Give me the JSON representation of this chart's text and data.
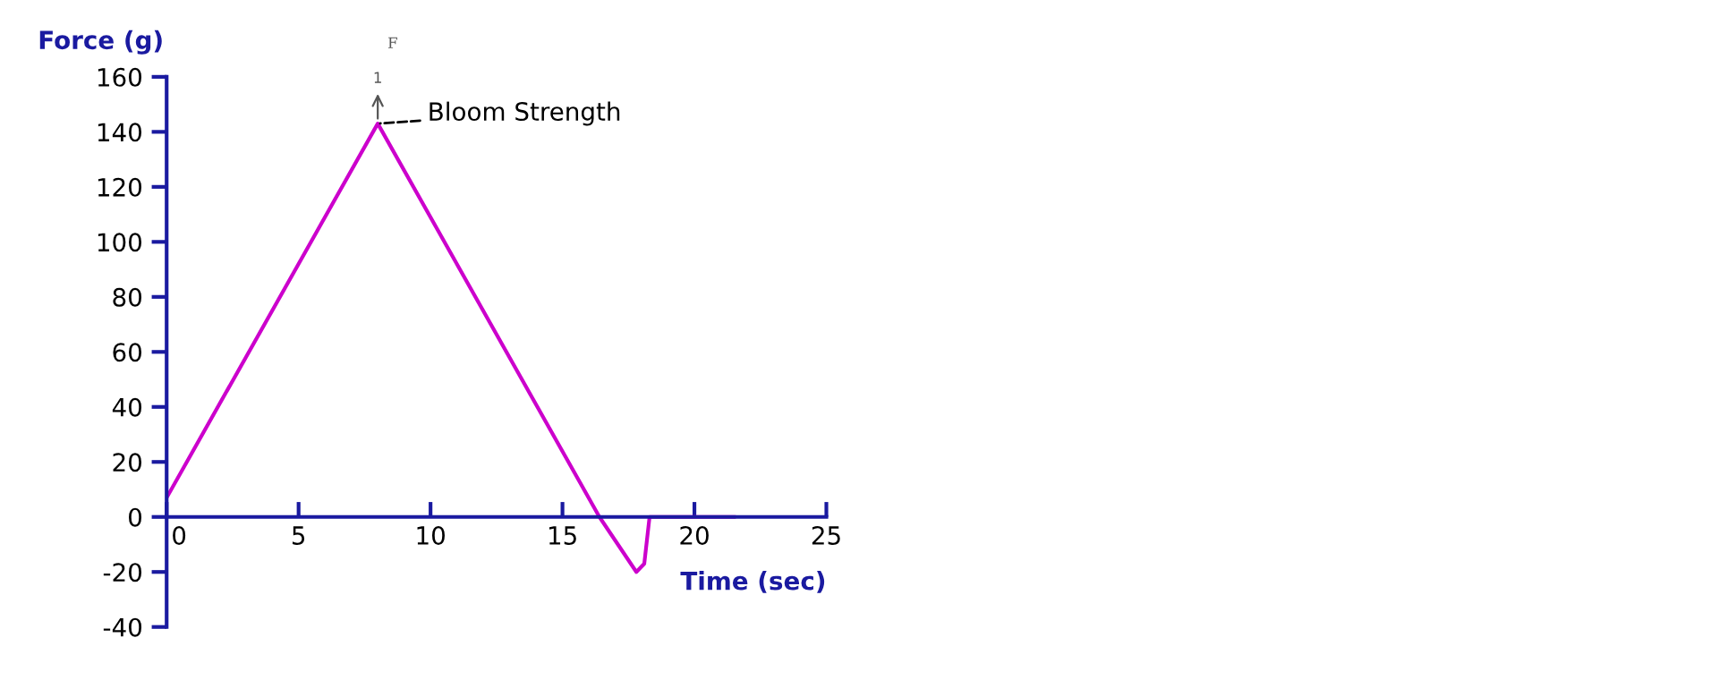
{
  "chart_data": {
    "type": "line",
    "xlabel": "Time (sec)",
    "ylabel": "Force (g)",
    "x": [
      0,
      8.0,
      16.4,
      17.8,
      18.1,
      18.3,
      21.5
    ],
    "series": [
      {
        "color": "#cc00cc",
        "values": [
          7,
          143,
          0,
          -20,
          -17,
          0,
          0
        ]
      }
    ],
    "xlim": [
      0,
      25
    ],
    "ylim": [
      -40,
      160
    ],
    "xticks": [
      0,
      5,
      10,
      15,
      20,
      25
    ],
    "yticks": [
      -40,
      -20,
      0,
      20,
      40,
      60,
      80,
      100,
      120,
      140,
      160
    ],
    "annotations": [
      {
        "text": "Bloom Strength",
        "x": 8.0,
        "y": 143
      },
      "1",
      "F"
    ],
    "grid": false,
    "legend": false,
    "marker": "none",
    "line_style": "solid"
  }
}
